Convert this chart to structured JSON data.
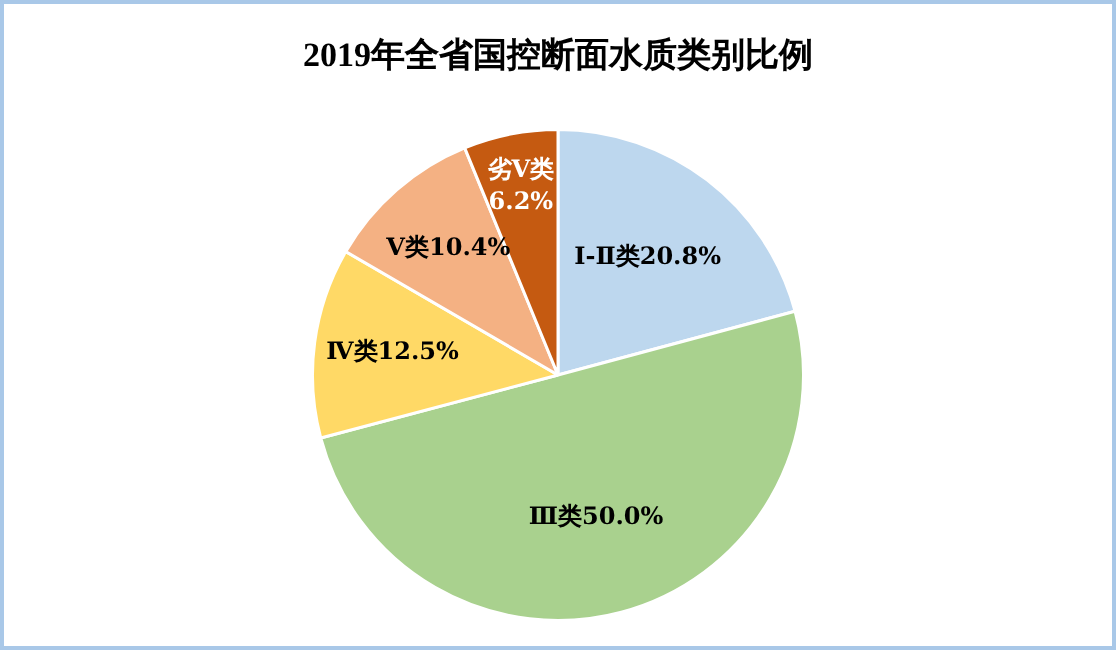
{
  "chart_data": {
    "type": "pie",
    "title": "2019年全省国控断面水质类别比例",
    "categories": [
      "Ⅰ-Ⅱ类",
      "Ⅲ类",
      "Ⅳ类",
      "Ⅴ类",
      "劣Ⅴ类"
    ],
    "values": [
      20.8,
      50.0,
      12.5,
      10.4,
      6.2
    ],
    "value_labels": [
      "20.8%",
      "50.0%",
      "12.5%",
      "10.4%",
      "6.2%"
    ],
    "colors": [
      "#bdd7ee",
      "#a9d18e",
      "#ffd966",
      "#f4b183",
      "#c55a11"
    ],
    "legend": false
  }
}
